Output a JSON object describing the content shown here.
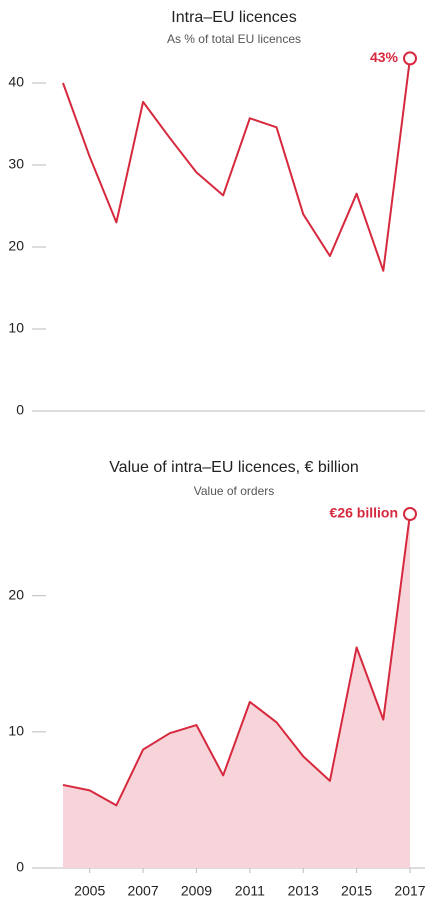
{
  "chart_data": [
    {
      "type": "line",
      "title": "Intra–EU licences",
      "subtitle": "As % of total EU licences",
      "x": [
        2004,
        2005,
        2006,
        2007,
        2008,
        2009,
        2010,
        2011,
        2012,
        2013,
        2014,
        2015,
        2016,
        2017
      ],
      "series": [
        {
          "color": "#d6293e",
          "values": [
            40,
            31,
            23,
            37.7,
            33.3,
            29.1,
            26.3,
            35.7,
            34.6,
            24,
            18.9,
            26.5,
            17.1,
            43
          ],
          "value_labels": [
            null,
            null,
            null,
            null,
            null,
            null,
            null,
            null,
            null,
            null,
            null,
            null,
            null,
            "43%"
          ]
        }
      ],
      "xlim": [
        2004,
        2017
      ],
      "ylim": [
        0,
        45
      ],
      "yticks": [
        0,
        10,
        20,
        30,
        40
      ]
    },
    {
      "type": "area",
      "title": "Value of intra–EU licences, € billion",
      "subtitle": "Value of orders",
      "x": [
        2004,
        2005,
        2006,
        2007,
        2008,
        2009,
        2010,
        2011,
        2012,
        2013,
        2014,
        2015,
        2016,
        2017
      ],
      "series": [
        {
          "color": "#d6293e",
          "fill": "#f7d4d9",
          "values": [
            6.1,
            5.7,
            4.6,
            8.7,
            9.9,
            10.5,
            6.8,
            12.2,
            10.7,
            8.2,
            6.4,
            16.2,
            10.9,
            26
          ],
          "value_labels": [
            null,
            null,
            null,
            null,
            null,
            null,
            null,
            null,
            null,
            null,
            null,
            null,
            null,
            "€26 billion"
          ]
        }
      ],
      "xlim": [
        2004,
        2017
      ],
      "ylim": [
        0,
        26
      ],
      "yticks": [
        0,
        10,
        20
      ],
      "xticks": [
        2005,
        2007,
        2009,
        2011,
        2013,
        2015,
        2017
      ]
    }
  ]
}
